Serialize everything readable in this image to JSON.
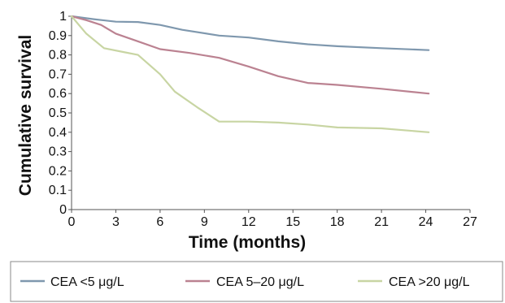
{
  "chart_data": {
    "type": "line",
    "title": "",
    "xlabel": "Time (months)",
    "ylabel": "Cumulative survival",
    "xlim": [
      0,
      27
    ],
    "ylim": [
      0,
      1
    ],
    "x_ticks": [
      0,
      3,
      6,
      9,
      12,
      15,
      18,
      21,
      24,
      27
    ],
    "y_ticks": [
      0,
      0.1,
      0.2,
      0.3,
      0.4,
      0.5,
      0.6,
      0.7,
      0.8,
      0.9,
      1
    ],
    "y_tick_labels": [
      "0",
      "0.1",
      "0.2",
      "0.3",
      "0.4",
      "0.5",
      "0.6",
      "0.7",
      "0.8",
      "0.9",
      "1"
    ],
    "grid": false,
    "legend_position": "bottom",
    "series": [
      {
        "name": "CEA <5 μg/L",
        "color": "#7f98ae",
        "points": [
          [
            0,
            1.0
          ],
          [
            1.5,
            0.985
          ],
          [
            3,
            0.972
          ],
          [
            4.5,
            0.97
          ],
          [
            6,
            0.955
          ],
          [
            7.5,
            0.93
          ],
          [
            10,
            0.9
          ],
          [
            12,
            0.89
          ],
          [
            14,
            0.87
          ],
          [
            16,
            0.855
          ],
          [
            18,
            0.845
          ],
          [
            21,
            0.835
          ],
          [
            24.2,
            0.825
          ]
        ]
      },
      {
        "name": "CEA 5–20 μg/L",
        "color": "#bb8291",
        "points": [
          [
            0,
            1.0
          ],
          [
            1,
            0.98
          ],
          [
            2,
            0.955
          ],
          [
            3,
            0.91
          ],
          [
            4.5,
            0.87
          ],
          [
            6,
            0.83
          ],
          [
            8,
            0.81
          ],
          [
            10,
            0.785
          ],
          [
            12,
            0.74
          ],
          [
            14,
            0.69
          ],
          [
            16,
            0.655
          ],
          [
            18,
            0.645
          ],
          [
            21,
            0.625
          ],
          [
            24.2,
            0.6
          ]
        ]
      },
      {
        "name": "CEA >20 μg/L",
        "color": "#c8d5a3",
        "points": [
          [
            0,
            1.0
          ],
          [
            1,
            0.91
          ],
          [
            2.2,
            0.835
          ],
          [
            3.5,
            0.815
          ],
          [
            4.5,
            0.8
          ],
          [
            6,
            0.7
          ],
          [
            7,
            0.61
          ],
          [
            8.5,
            0.53
          ],
          [
            10,
            0.455
          ],
          [
            12,
            0.455
          ],
          [
            14,
            0.45
          ],
          [
            16,
            0.44
          ],
          [
            18,
            0.425
          ],
          [
            21,
            0.42
          ],
          [
            24.2,
            0.4
          ]
        ]
      }
    ]
  }
}
